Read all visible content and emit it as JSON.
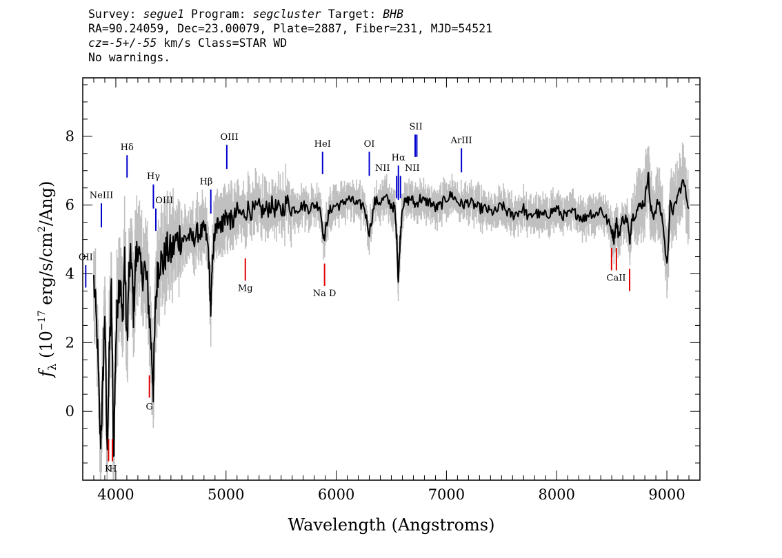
{
  "header": {
    "survey_label": "Survey:",
    "survey": "segue1",
    "program_label": "Program:",
    "program": "segcluster",
    "target_label": "Target:",
    "target": "BHB",
    "line2": "RA=90.24059, Dec=23.00079, Plate=2887, Fiber=231, MJD=54521",
    "cz_label": "cz=",
    "cz_value": "-5+/-55",
    "cz_units": "km/s",
    "class_text": "Class=STAR WD",
    "warnings": "No warnings."
  },
  "chart_data": {
    "type": "line",
    "xlabel": "Wavelength (Angstroms)",
    "ylabel": "fλ (10^-17 erg/s/cm^2/Ang)",
    "xlim": [
      3700,
      9300
    ],
    "ylim": [
      -2,
      9.7
    ],
    "x_ticks": [
      4000,
      5000,
      6000,
      7000,
      8000,
      9000
    ],
    "y_ticks": [
      0,
      2,
      4,
      6,
      8
    ],
    "grid": false,
    "colors": {
      "flux": "#000000",
      "noise_band": "#c0c0c0",
      "emission": "#0000cc",
      "absorption": "#dd0000"
    },
    "series": [
      {
        "x": [
          3800,
          3830,
          3860,
          3880,
          3900,
          3920,
          3940,
          3960,
          3980,
          4000,
          4020,
          4040,
          4060,
          4080,
          4100,
          4120,
          4140,
          4160,
          4180,
          4200,
          4230,
          4260,
          4290,
          4320,
          4340,
          4360,
          4380,
          4400,
          4430,
          4460,
          4500,
          4540,
          4580,
          4620,
          4660,
          4700,
          4740,
          4780,
          4810,
          4840,
          4862,
          4880,
          4900,
          4920,
          4940,
          4960,
          4980,
          5000,
          5030,
          5060,
          5100,
          5150,
          5200,
          5250,
          5300,
          5350,
          5400,
          5450,
          5500,
          5550,
          5600,
          5650,
          5700,
          5750,
          5800,
          5850,
          5890,
          5920,
          5950,
          6000,
          6050,
          6100,
          6150,
          6200,
          6250,
          6300,
          6350,
          6400,
          6450,
          6500,
          6530,
          6550,
          6563,
          6580,
          6600,
          6640,
          6680,
          6720,
          6760,
          6800,
          6850,
          6900,
          6950,
          7000,
          7050,
          7100,
          7150,
          7200,
          7250,
          7300,
          7350,
          7400,
          7450,
          7500,
          7550,
          7600,
          7650,
          7700,
          7750,
          7800,
          7850,
          7900,
          7950,
          8000,
          8050,
          8100,
          8150,
          8200,
          8250,
          8300,
          8350,
          8400,
          8450,
          8498,
          8520,
          8542,
          8560,
          8600,
          8640,
          8662,
          8680,
          8720,
          8760,
          8800,
          8830,
          8850,
          8880,
          8920,
          8960,
          9000,
          9030,
          9060,
          9100,
          9150,
          9200
        ],
        "y": [
          3.8,
          2.2,
          -1.0,
          0.5,
          3.0,
          -1.2,
          1.5,
          3.5,
          -1.4,
          2.0,
          3.5,
          3.9,
          2.5,
          4.6,
          1.9,
          4.0,
          4.5,
          2.9,
          4.3,
          4.9,
          3.9,
          4.2,
          3.5,
          2.0,
          0.7,
          3.0,
          4.1,
          4.4,
          4.3,
          4.7,
          4.6,
          4.9,
          5.1,
          5.0,
          5.1,
          5.0,
          5.2,
          5.2,
          5.3,
          4.7,
          2.9,
          4.6,
          5.2,
          5.4,
          5.6,
          5.4,
          5.6,
          5.7,
          5.6,
          5.5,
          5.8,
          5.7,
          5.9,
          5.8,
          5.9,
          5.8,
          6.0,
          5.9,
          5.8,
          6.1,
          5.9,
          5.9,
          6.0,
          5.9,
          6.0,
          6.0,
          5.0,
          5.6,
          5.9,
          6.0,
          6.0,
          6.2,
          6.1,
          6.0,
          6.0,
          5.2,
          6.1,
          6.1,
          6.2,
          6.0,
          5.9,
          5.0,
          3.8,
          5.0,
          6.0,
          6.1,
          6.2,
          6.0,
          6.2,
          6.1,
          6.1,
          5.9,
          6.0,
          6.2,
          6.3,
          6.1,
          6.0,
          6.1,
          6.0,
          5.9,
          5.9,
          5.8,
          5.8,
          6.0,
          5.8,
          5.7,
          5.8,
          5.9,
          5.6,
          5.8,
          5.7,
          5.7,
          5.8,
          5.9,
          5.7,
          5.7,
          5.8,
          5.7,
          5.6,
          5.8,
          5.7,
          5.9,
          5.6,
          5.3,
          5.0,
          5.6,
          5.1,
          5.6,
          5.6,
          4.9,
          5.6,
          5.8,
          6.0,
          6.1,
          7.0,
          5.9,
          5.7,
          6.1,
          5.6,
          4.2,
          6.0,
          5.8,
          6.3,
          6.7,
          5.9
        ]
      }
    ],
    "line_markers": [
      {
        "label": "Hδ",
        "x": 4102,
        "kind": "emission",
        "y": [
          6.8,
          7.45
        ]
      },
      {
        "label": "Hγ",
        "x": 4341,
        "kind": "emission",
        "y": [
          5.9,
          6.6
        ]
      },
      {
        "label": "Hβ",
        "x": 4862,
        "kind": "emission",
        "y": [
          5.75,
          6.45
        ]
      },
      {
        "label": "Hα",
        "x": 6564,
        "kind": "emission",
        "y": [
          6.15,
          7.15
        ]
      },
      {
        "label": "NeIII",
        "x": 3869,
        "kind": "emission",
        "y": [
          5.35,
          6.05
        ]
      },
      {
        "label": "OIII",
        "x": 4363,
        "kind": "emission",
        "y": [
          5.25,
          5.9
        ]
      },
      {
        "label": "OIII",
        "x": 5007,
        "kind": "emission",
        "y": [
          7.05,
          7.75
        ]
      },
      {
        "label": "HeI",
        "x": 5876,
        "kind": "emission",
        "y": [
          6.9,
          7.55
        ]
      },
      {
        "label": "OI",
        "x": 6300,
        "kind": "emission",
        "y": [
          6.85,
          7.55
        ]
      },
      {
        "label": "NII",
        "x": 6548,
        "kind": "emission",
        "y": [
          6.2,
          6.85
        ]
      },
      {
        "label": "NII",
        "x": 6583,
        "kind": "emission",
        "y": [
          6.2,
          6.85
        ]
      },
      {
        "label": "SII",
        "x": 6716,
        "kind": "emission",
        "y": [
          7.4,
          8.05
        ]
      },
      {
        "label": "SII",
        "x": 6731,
        "kind": "emission",
        "y": [
          7.4,
          8.05
        ]
      },
      {
        "label": "ArIII",
        "x": 7136,
        "kind": "emission",
        "y": [
          6.95,
          7.65
        ]
      },
      {
        "label": "OII",
        "x": 3727,
        "kind": "emission",
        "y": [
          3.6,
          4.25
        ]
      },
      {
        "label": "K",
        "x": 3934,
        "kind": "absorption",
        "y": [
          -1.45,
          -0.8
        ]
      },
      {
        "label": "H",
        "x": 3969,
        "kind": "absorption",
        "y": [
          -1.45,
          -0.8
        ]
      },
      {
        "label": "G",
        "x": 4305,
        "kind": "absorption",
        "y": [
          0.4,
          1.05
        ]
      },
      {
        "label": "Mg",
        "x": 5175,
        "kind": "absorption",
        "y": [
          3.8,
          4.45
        ]
      },
      {
        "label": "Na D",
        "x": 5894,
        "kind": "absorption",
        "y": [
          3.65,
          4.3
        ]
      },
      {
        "label": "CaII",
        "x": 8498,
        "kind": "absorption",
        "y": [
          4.1,
          4.75
        ]
      },
      {
        "label": "CaII",
        "x": 8542,
        "kind": "absorption",
        "y": [
          4.1,
          4.75
        ]
      },
      {
        "label": "CaII",
        "x": 8662,
        "kind": "absorption",
        "y": [
          3.5,
          4.15
        ]
      }
    ],
    "line_text": [
      {
        "text": "OII",
        "x": 3727,
        "y": 4.4
      },
      {
        "text": "NeIII",
        "x": 3869,
        "y": 6.2
      },
      {
        "text": "Hδ",
        "x": 4102,
        "y": 7.6
      },
      {
        "text": "Hγ",
        "x": 4341,
        "y": 6.75
      },
      {
        "text": "OIII",
        "x": 4440,
        "y": 6.05
      },
      {
        "text": "Hβ",
        "x": 4820,
        "y": 6.6
      },
      {
        "text": "OIII",
        "x": 5030,
        "y": 7.9
      },
      {
        "text": "HeI",
        "x": 5876,
        "y": 7.7
      },
      {
        "text": "OI",
        "x": 6300,
        "y": 7.7
      },
      {
        "text": "NII",
        "x": 6420,
        "y": 7.0
      },
      {
        "text": "Hα",
        "x": 6564,
        "y": 7.3
      },
      {
        "text": "NII",
        "x": 6690,
        "y": 7.0
      },
      {
        "text": "SII",
        "x": 6723,
        "y": 8.2
      },
      {
        "text": "ArIII",
        "x": 7136,
        "y": 7.8
      },
      {
        "text": "K",
        "x": 3930,
        "y": -1.75
      },
      {
        "text": "H",
        "x": 3975,
        "y": -1.75
      },
      {
        "text": "G",
        "x": 4305,
        "y": 0.05
      },
      {
        "text": "Mg",
        "x": 5175,
        "y": 3.5
      },
      {
        "text": "Na D",
        "x": 5894,
        "y": 3.35
      },
      {
        "text": "CaII",
        "x": 8540,
        "y": 3.8
      }
    ]
  }
}
